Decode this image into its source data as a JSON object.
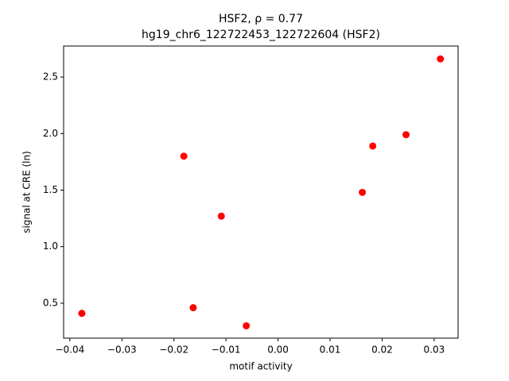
{
  "chart_data": {
    "type": "scatter",
    "title": "HSF2, ρ = 0.77",
    "subtitle": "hg19_chr6_122722453_122722604 (HSF2)",
    "xlabel": "motif activity",
    "ylabel": "signal at CRE (ln)",
    "color": "#ff0000",
    "x": [
      -0.0377,
      -0.0163,
      -0.0061,
      -0.0109,
      -0.0181,
      0.0162,
      0.0182,
      0.0246,
      0.0312
    ],
    "values": [
      0.41,
      0.46,
      0.3,
      1.27,
      1.8,
      1.48,
      1.89,
      1.99,
      2.66
    ],
    "xlim": [
      -0.0412,
      0.0346
    ],
    "ylim": [
      0.191,
      2.774
    ],
    "xticks": [
      {
        "value": -0.04,
        "label": "−0.04"
      },
      {
        "value": -0.03,
        "label": "−0.03"
      },
      {
        "value": -0.02,
        "label": "−0.02"
      },
      {
        "value": -0.01,
        "label": "−0.01"
      },
      {
        "value": 0,
        "label": "0.00"
      },
      0.01,
      0.02,
      0.03
    ],
    "yticks": [
      0.5,
      {
        "value": 1,
        "label": "1.0"
      },
      1.5,
      {
        "value": 2,
        "label": "2.0"
      },
      2.5
    ]
  }
}
